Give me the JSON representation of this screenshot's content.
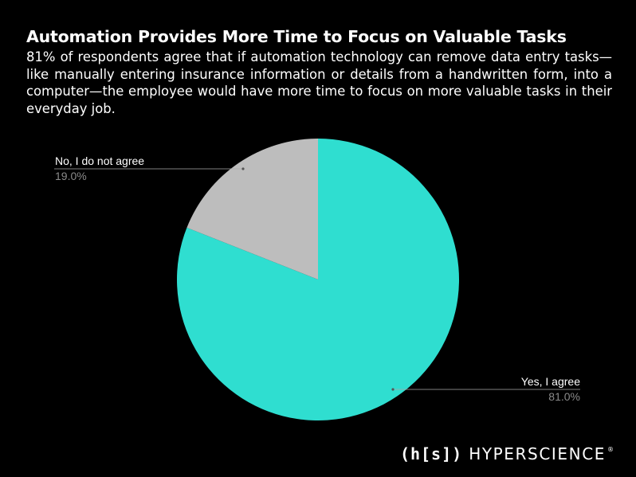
{
  "title": "Automation Provides More Time to Focus on Valuable Tasks",
  "subtitle": "81% of respondents agree that if automation technology can remove data entry tasks—like manually entering insurance information or details from a handwritten form, into a computer—the employee would have more time to focus on more valuable tasks in their everyday job.",
  "brand": {
    "mark": "(h[s])",
    "name": "HYPERSCIENCE",
    "registered": "®"
  },
  "colors": {
    "background": "#000000",
    "yes": "#2fded0",
    "no": "#bdbdbd",
    "label": "#ffffff",
    "percent": "#8a8a8a",
    "leader": "#aaaaaa"
  },
  "chart_data": {
    "type": "pie",
    "title": "",
    "slices": [
      {
        "label": "Yes, I agree",
        "value": 81.0,
        "display": "81.0%",
        "color": "#2fded0"
      },
      {
        "label": "No, I do not agree",
        "value": 19.0,
        "display": "19.0%",
        "color": "#bdbdbd"
      }
    ],
    "start_angle": "12 o'clock",
    "direction": "clockwise",
    "legend": "none (slice callouts)"
  }
}
